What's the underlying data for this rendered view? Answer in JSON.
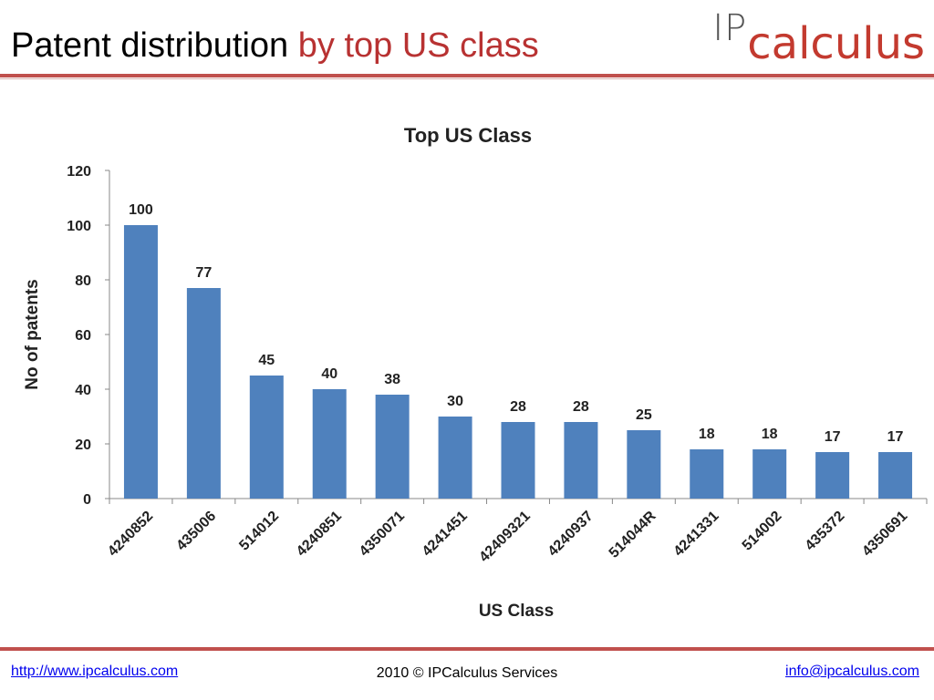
{
  "slide": {
    "title_main": "Patent distribution",
    "title_accent": "by top US class"
  },
  "logo": {
    "part1": "IP",
    "part2": "calculus"
  },
  "footer": {
    "left_link": "http://www.ipcalculus.com",
    "center": "2010 © IPCalculus Services",
    "right_link": "info@ipcalculus.com"
  },
  "colors": {
    "bar": "#4f81bd",
    "accent": "#c0504d",
    "title_accent": "#b83232"
  },
  "chart_data": {
    "type": "bar",
    "title": "Top US Class",
    "xlabel": "US Class",
    "ylabel": "No of patents",
    "ylim": [
      0,
      120
    ],
    "yticks": [
      0,
      20,
      40,
      60,
      80,
      100,
      120
    ],
    "categories": [
      "4240852",
      "435006",
      "514012",
      "4240851",
      "4350071",
      "4241451",
      "42409321",
      "4240937",
      "514044R",
      "4241331",
      "514002",
      "435372",
      "4350691"
    ],
    "values": [
      100,
      77,
      45,
      40,
      38,
      30,
      28,
      28,
      25,
      18,
      18,
      17,
      17
    ],
    "data_labels": true,
    "grid": false,
    "legend": "none"
  }
}
